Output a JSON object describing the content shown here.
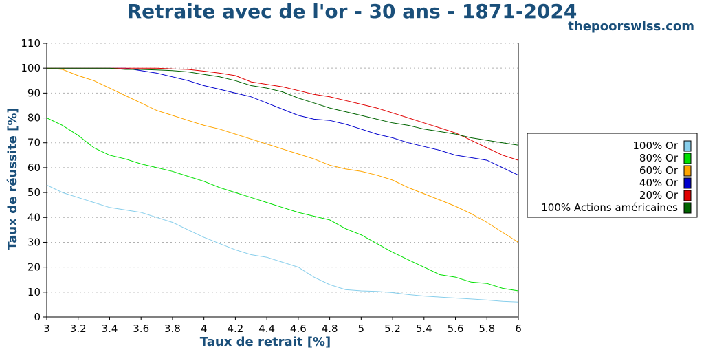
{
  "page": {
    "title": "Retraite avec de l'or - 30 ans - 1871-2024",
    "watermark": "thepoorswiss.com"
  },
  "chart_data": {
    "type": "line",
    "title": "Retraite avec de l'or - 30 ans - 1871-2024",
    "xlabel": "Taux de retrait [%]",
    "ylabel": "Taux de réussite [%]",
    "xlim": [
      3,
      6
    ],
    "ylim": [
      0,
      110
    ],
    "xticks": [
      "3",
      "3.2",
      "3.4",
      "3.6",
      "3.8",
      "4",
      "4.2",
      "4.4",
      "4.6",
      "4.8",
      "5",
      "5.2",
      "5.4",
      "5.6",
      "5.8",
      "6"
    ],
    "yticks": [
      "0",
      "10",
      "20",
      "30",
      "40",
      "50",
      "60",
      "70",
      "80",
      "90",
      "100",
      "110"
    ],
    "grid": true,
    "legend_position": "right",
    "x": [
      3.0,
      3.1,
      3.2,
      3.3,
      3.4,
      3.5,
      3.6,
      3.7,
      3.8,
      3.9,
      4.0,
      4.1,
      4.2,
      4.3,
      4.4,
      4.5,
      4.6,
      4.7,
      4.8,
      4.9,
      5.0,
      5.1,
      5.2,
      5.3,
      5.4,
      5.5,
      5.6,
      5.7,
      5.8,
      5.9,
      6.0
    ],
    "series": [
      {
        "name": "100% Or",
        "color": "#87ceeb",
        "values": [
          53,
          50,
          48,
          46,
          44,
          43,
          42,
          40,
          38,
          35,
          32,
          29.5,
          27,
          25,
          24,
          22,
          20,
          16,
          13,
          11,
          10.5,
          10.3,
          9.8,
          9,
          8.4,
          8,
          7.6,
          7.2,
          6.8,
          6.3,
          6
        ]
      },
      {
        "name": "80% Or",
        "color": "#00e000",
        "values": [
          80,
          77,
          73,
          68,
          65,
          63.5,
          61.5,
          60,
          58.5,
          56.5,
          54.5,
          52,
          50,
          48,
          46,
          44,
          42,
          40.5,
          39,
          35.5,
          33,
          29.5,
          26,
          23,
          20,
          17,
          16,
          14,
          13.5,
          11.5,
          10.5
        ]
      },
      {
        "name": "60% Or",
        "color": "#ffa500",
        "values": [
          100,
          99.5,
          97,
          95,
          92,
          89,
          86,
          83,
          81,
          79,
          77,
          75.5,
          73.5,
          71.5,
          69.5,
          67.5,
          65.5,
          63.5,
          61,
          59.5,
          58.5,
          57,
          55,
          52,
          49.5,
          47,
          44.5,
          41.5,
          38,
          34,
          30
        ]
      },
      {
        "name": "40% Or",
        "color": "#0000cd",
        "values": [
          100,
          100,
          100,
          100,
          100,
          100,
          99,
          98,
          96.5,
          95,
          93,
          91.5,
          90,
          88.5,
          86,
          83.5,
          81,
          79.5,
          79,
          77.5,
          75.5,
          73.5,
          72,
          70,
          68.5,
          67,
          65,
          64,
          63,
          60,
          57
        ]
      },
      {
        "name": "20% Or",
        "color": "#e00000",
        "values": [
          100,
          100,
          100,
          100,
          100,
          100,
          100,
          100,
          99.7,
          99.5,
          98.8,
          98,
          97,
          94.5,
          93.5,
          92.5,
          91,
          89.5,
          88.5,
          87,
          85.5,
          84,
          82,
          80,
          78,
          76,
          74,
          71,
          68,
          65,
          63
        ]
      },
      {
        "name": "100% Actions américaines",
        "color": "#006400",
        "values": [
          100,
          100,
          100,
          100,
          100,
          99.5,
          99.5,
          99.3,
          99,
          98.5,
          97.5,
          96.5,
          95,
          93,
          92,
          90.5,
          88,
          86,
          84,
          82.5,
          81,
          79.5,
          78,
          77,
          75.5,
          74.5,
          73.5,
          72,
          71,
          70,
          69
        ]
      }
    ]
  }
}
